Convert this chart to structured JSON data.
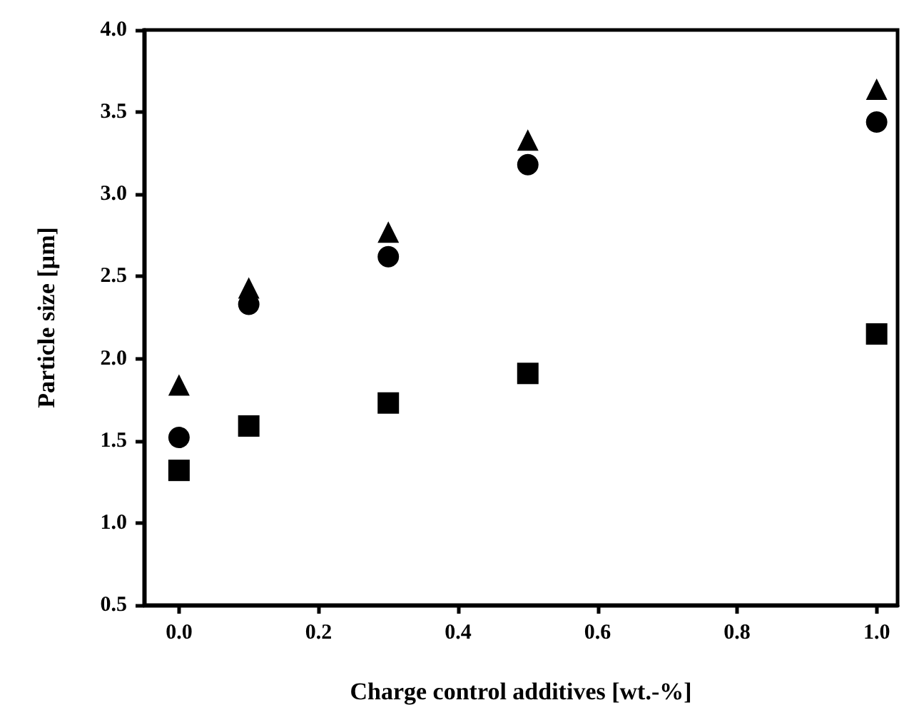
{
  "chart_data": {
    "type": "scatter",
    "xlabel": "Charge control additives [wt.-%]",
    "ylabel": "Particle size [µm]",
    "xlim": [
      -0.05,
      1.03
    ],
    "xticks": [
      {
        "value": 0,
        "label": "0.0"
      },
      {
        "value": 0.2,
        "label": "0.2"
      },
      {
        "value": 0.4,
        "label": "0.4"
      },
      {
        "value": 0.6,
        "label": "0.6"
      },
      {
        "value": 0.8,
        "label": "0.8"
      },
      {
        "value": 1,
        "label": "1.0"
      }
    ],
    "ylim": [
      0.5,
      4.0
    ],
    "yticks": [
      {
        "value": 0.5,
        "label": "0.5"
      },
      {
        "value": 1,
        "label": "1.0"
      },
      {
        "value": 1.5,
        "label": "1.5"
      },
      {
        "value": 2,
        "label": "2.0"
      },
      {
        "value": 2.5,
        "label": "2.5"
      },
      {
        "value": 3,
        "label": "3.0"
      },
      {
        "value": 3.5,
        "label": "3.5"
      },
      {
        "value": 4,
        "label": "4.0"
      }
    ],
    "grid": false,
    "series": [
      {
        "color": "#000000",
        "marker": "triangle",
        "x": [
          0,
          0.1,
          0.3,
          0.5,
          1.0
        ],
        "values": [
          1.84,
          2.43,
          2.77,
          3.33,
          3.64
        ]
      },
      {
        "color": "#000000",
        "marker": "circle",
        "x": [
          0,
          0.1,
          0.3,
          0.5,
          1.0
        ],
        "values": [
          1.52,
          2.33,
          2.62,
          3.18,
          3.44
        ]
      },
      {
        "color": "#000000",
        "marker": "square",
        "x": [
          0,
          0.1,
          0.3,
          0.5,
          1.0
        ],
        "values": [
          1.32,
          1.59,
          1.73,
          1.91,
          2.15
        ]
      }
    ]
  }
}
